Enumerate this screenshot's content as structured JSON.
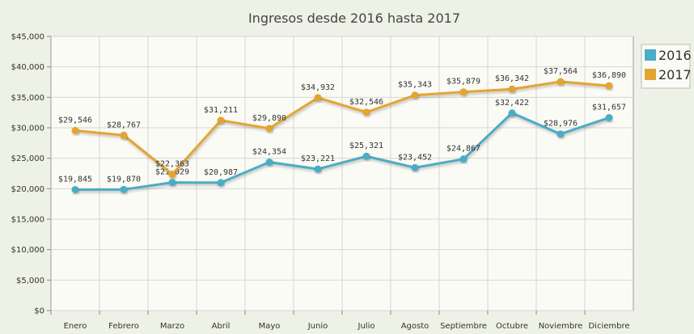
{
  "chart_data": {
    "type": "line",
    "title": "Ingresos desde 2016 hasta 2017",
    "categories": [
      "Enero",
      "Febrero",
      "Marzo",
      "Abril",
      "Mayo",
      "Junio",
      "Julio",
      "Agosto",
      "Septiembre",
      "Octubre",
      "Noviembre",
      "Diciembre"
    ],
    "series": [
      {
        "name": "2016",
        "color": "#4bacc6",
        "values": [
          19845,
          19870,
          21029,
          20987,
          24354,
          23221,
          25321,
          23452,
          24867,
          32422,
          28976,
          31657
        ],
        "labels": [
          "$19,845",
          "$19,870",
          "$21,029",
          "$20,987",
          "$24,354",
          "$23,221",
          "$25,321",
          "$23,452",
          "$24,867",
          "$32,422",
          "$28,976",
          "$31,657"
        ]
      },
      {
        "name": "2017",
        "color": "#e3a532",
        "values": [
          29546,
          28767,
          22363,
          31211,
          29890,
          34932,
          32546,
          35343,
          35879,
          36342,
          37564,
          36890
        ],
        "labels": [
          "$29,546",
          "$28,767",
          "$22,363",
          "$31,211",
          "$29,890",
          "$34,932",
          "$32,546",
          "$35,343",
          "$35,879",
          "$36,342",
          "$37,564",
          "$36,890"
        ]
      }
    ],
    "ylim": [
      0,
      45000
    ],
    "yticks": [
      0,
      5000,
      10000,
      15000,
      20000,
      25000,
      30000,
      35000,
      40000,
      45000
    ],
    "ytick_labels": [
      "$0",
      "$5,000",
      "$10,000",
      "$15,000",
      "$20,000",
      "$25,000",
      "$30,000",
      "$35,000",
      "$40,000",
      "$45,000"
    ],
    "grid": true,
    "legend_position": "right"
  }
}
